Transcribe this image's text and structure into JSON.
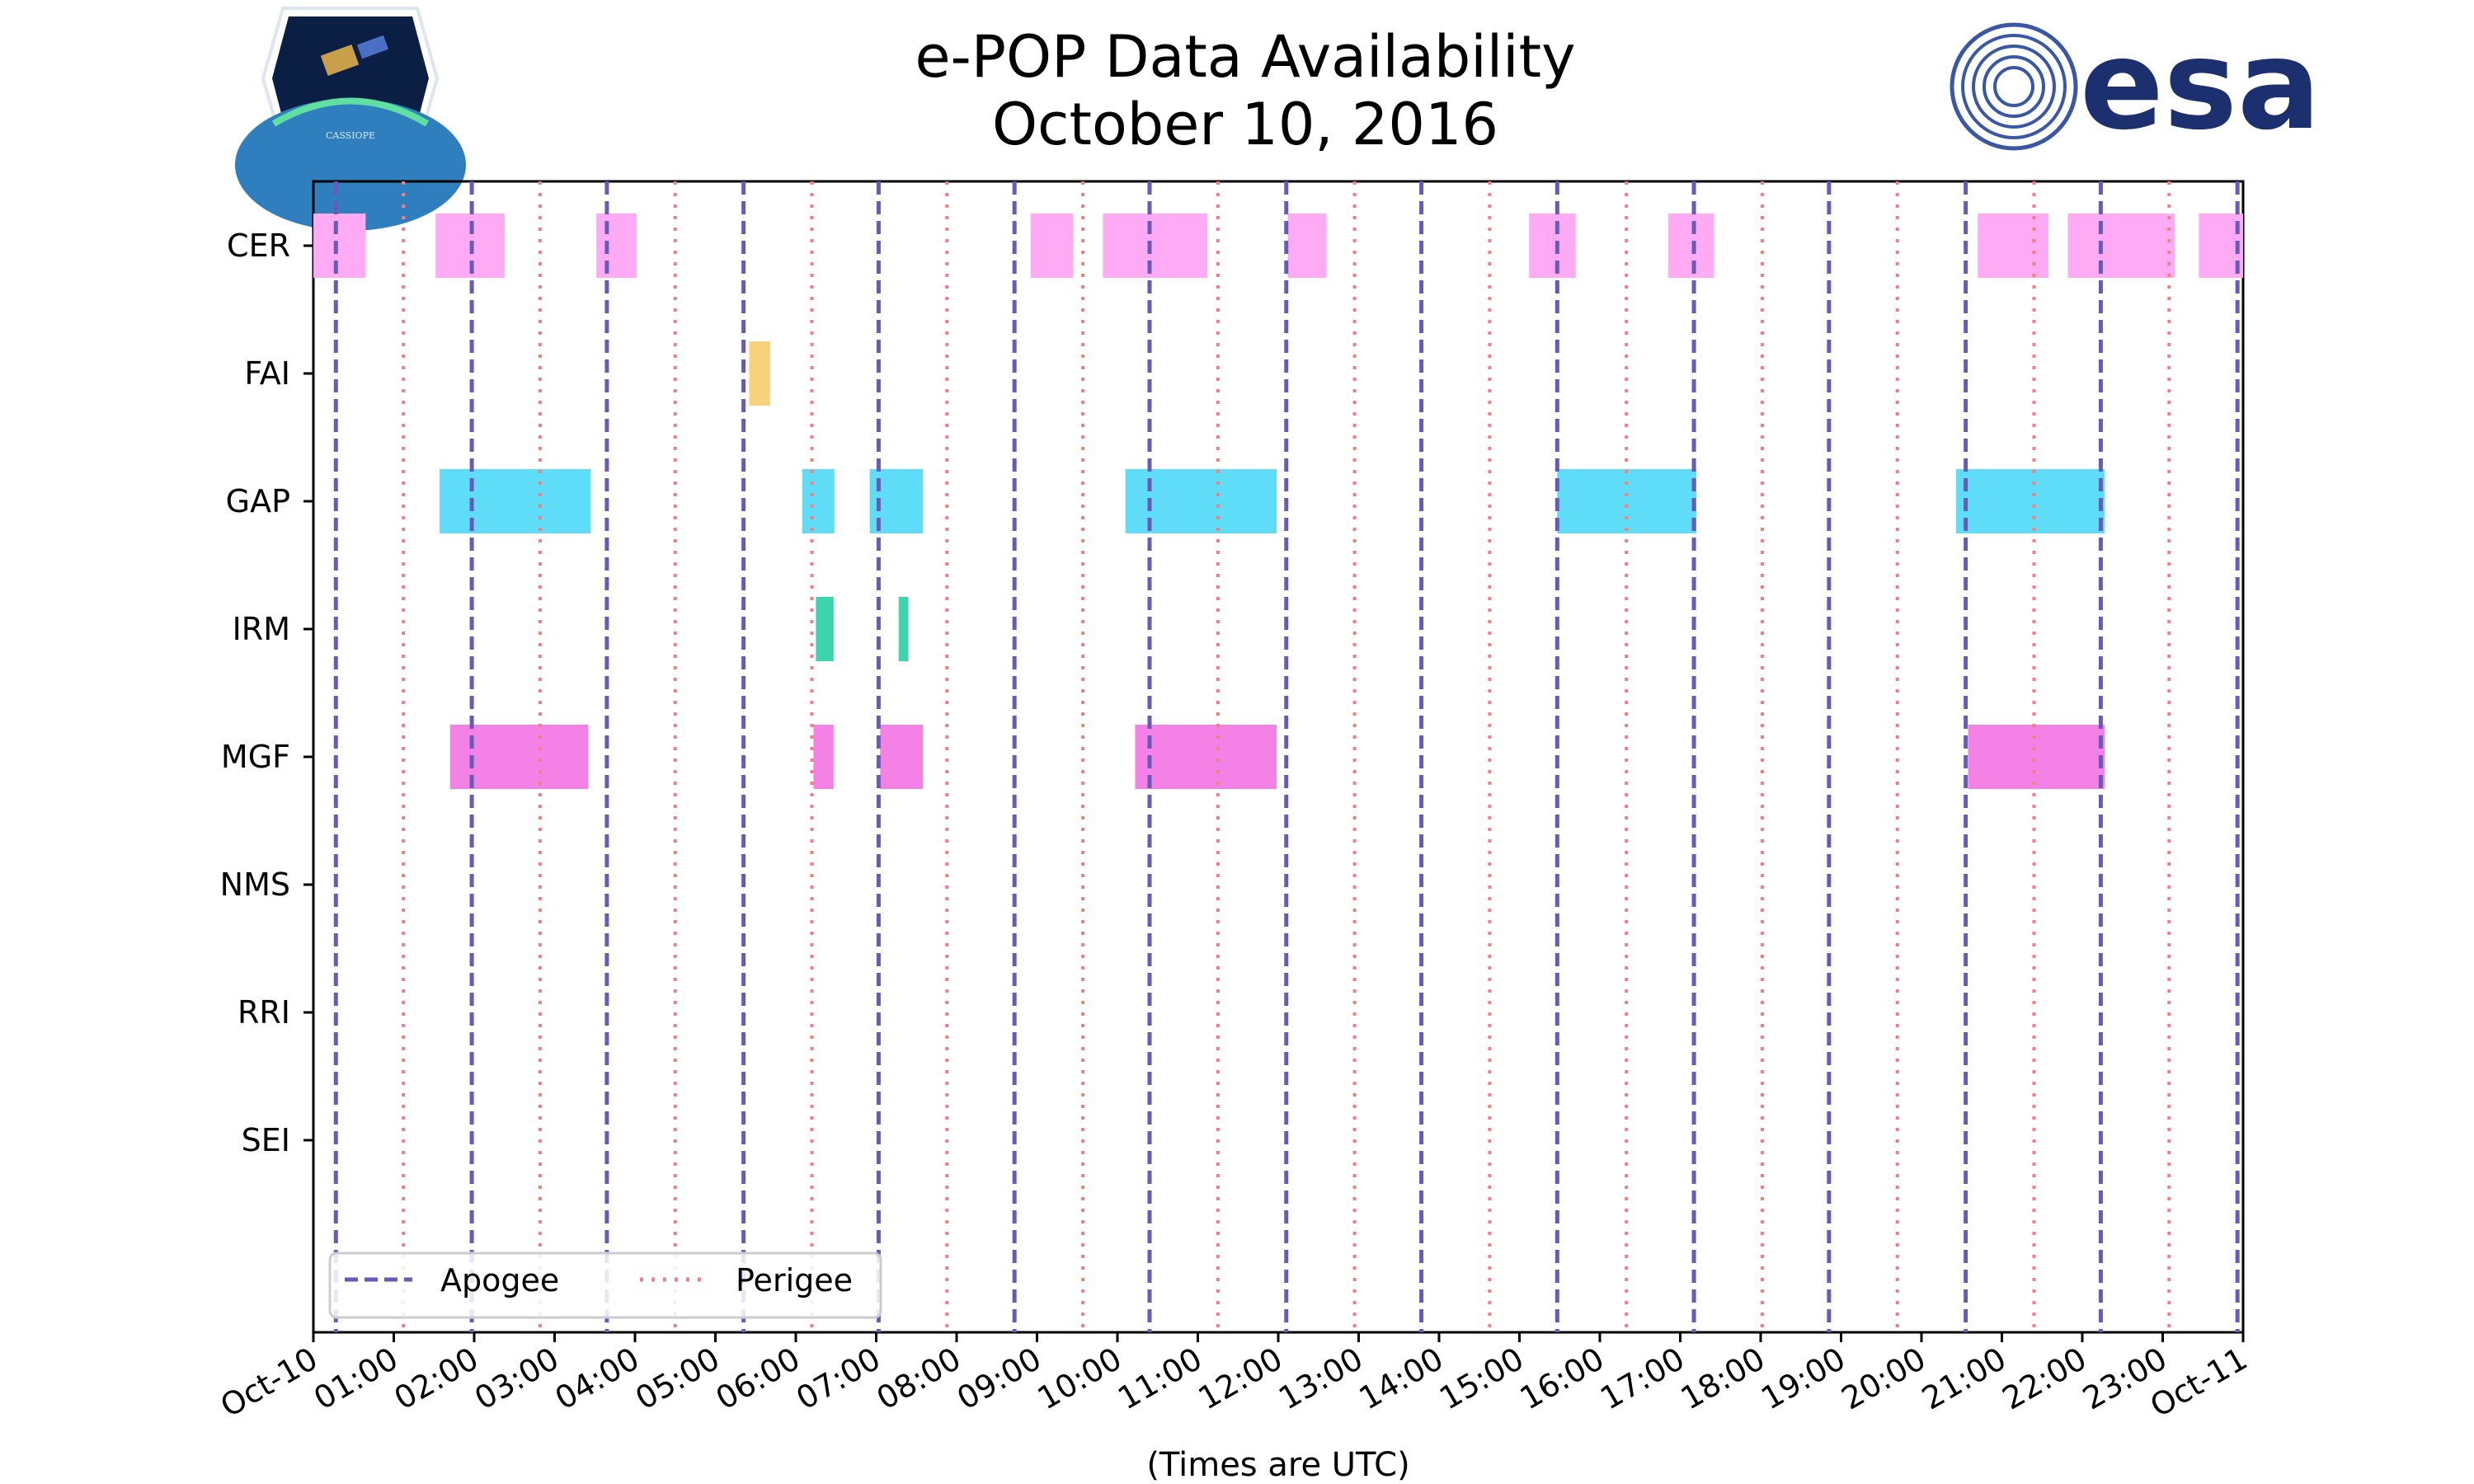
{
  "chart_data": {
    "type": "timeline",
    "title": "e-POP Data Availability",
    "subtitle": "October 10, 2016",
    "xlabel": "(Times are UTC)",
    "x_unit": "hours",
    "xlim": [
      0,
      24
    ],
    "x_ticks": [
      {
        "value": 0,
        "label": "Oct-10"
      },
      {
        "value": 1,
        "label": "01:00"
      },
      {
        "value": 2,
        "label": "02:00"
      },
      {
        "value": 3,
        "label": "03:00"
      },
      {
        "value": 4,
        "label": "04:00"
      },
      {
        "value": 5,
        "label": "05:00"
      },
      {
        "value": 6,
        "label": "06:00"
      },
      {
        "value": 7,
        "label": "07:00"
      },
      {
        "value": 8,
        "label": "08:00"
      },
      {
        "value": 9,
        "label": "09:00"
      },
      {
        "value": 10,
        "label": "10:00"
      },
      {
        "value": 11,
        "label": "11:00"
      },
      {
        "value": 12,
        "label": "12:00"
      },
      {
        "value": 13,
        "label": "13:00"
      },
      {
        "value": 14,
        "label": "14:00"
      },
      {
        "value": 15,
        "label": "15:00"
      },
      {
        "value": 16,
        "label": "16:00"
      },
      {
        "value": 17,
        "label": "17:00"
      },
      {
        "value": 18,
        "label": "18:00"
      },
      {
        "value": 19,
        "label": "19:00"
      },
      {
        "value": 20,
        "label": "20:00"
      },
      {
        "value": 21,
        "label": "21:00"
      },
      {
        "value": 22,
        "label": "22:00"
      },
      {
        "value": 23,
        "label": "23:00"
      },
      {
        "value": 24,
        "label": "Oct-11"
      }
    ],
    "instruments": [
      {
        "name": "CER",
        "color": "#ffaaf5",
        "intervals": [
          [
            0.0,
            0.65
          ],
          [
            1.52,
            2.38
          ],
          [
            3.52,
            4.02
          ],
          [
            8.92,
            9.45
          ],
          [
            9.82,
            11.12
          ],
          [
            12.12,
            12.6
          ],
          [
            15.12,
            15.7
          ],
          [
            16.85,
            17.42
          ],
          [
            20.7,
            21.58
          ],
          [
            21.82,
            23.15
          ],
          [
            23.45,
            24.0
          ]
        ]
      },
      {
        "name": "FAI",
        "color": "#f8d27a",
        "intervals": [
          [
            5.42,
            5.68
          ]
        ]
      },
      {
        "name": "GAP",
        "color": "#5fdcf8",
        "intervals": [
          [
            1.57,
            3.45
          ],
          [
            6.08,
            6.48
          ],
          [
            6.92,
            7.58
          ],
          [
            10.1,
            11.98
          ],
          [
            15.47,
            17.2
          ],
          [
            20.43,
            22.28
          ]
        ]
      },
      {
        "name": "IRM",
        "color": "#3cd3ad",
        "intervals": [
          [
            6.25,
            6.47
          ],
          [
            7.28,
            7.4
          ]
        ]
      },
      {
        "name": "MGF",
        "color": "#f482e6",
        "intervals": [
          [
            1.7,
            3.42
          ],
          [
            6.22,
            6.47
          ],
          [
            7.05,
            7.58
          ],
          [
            10.22,
            11.98
          ],
          [
            20.58,
            22.28
          ]
        ]
      },
      {
        "name": "NMS",
        "color": "#f482e6",
        "intervals": []
      },
      {
        "name": "RRI",
        "color": "#f482e6",
        "intervals": []
      },
      {
        "name": "SEI",
        "color": "#f482e6",
        "intervals": []
      }
    ],
    "apogee_times": [
      0.28,
      1.97,
      3.65,
      5.35,
      7.03,
      8.72,
      10.4,
      12.1,
      13.78,
      15.47,
      17.17,
      18.85,
      20.55,
      22.23,
      23.93
    ],
    "perigee_times": [
      1.12,
      2.82,
      4.5,
      6.2,
      7.88,
      9.57,
      11.25,
      12.95,
      14.63,
      16.33,
      18.02,
      19.7,
      21.4,
      23.08
    ],
    "apogee_color": "#6a5ab8",
    "perigee_color": "#f08080",
    "legend": {
      "position": "lower-left",
      "entries": [
        "Apogee",
        "Perigee"
      ]
    }
  },
  "logos": {
    "left_caption": "CASSIOPE",
    "right_text": "esa"
  }
}
